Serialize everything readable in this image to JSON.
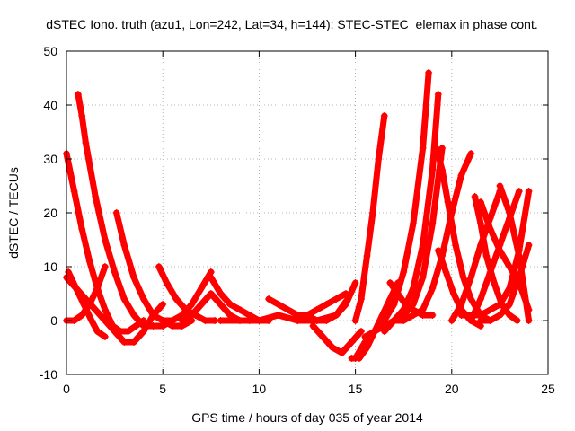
{
  "chart_data": {
    "type": "scatter",
    "title": "dSTEC Iono. truth (azu1, Lon=242, Lat=34, h=144): STEC-STEC_elemax in phase cont.",
    "xlabel": "GPS time / hours of day 035 of year 2014",
    "ylabel": "dSTEC  / TECUs",
    "xlim": [
      0,
      25
    ],
    "ylim": [
      -10,
      50
    ],
    "xticks": [
      0,
      5,
      10,
      15,
      20,
      25
    ],
    "yticks": [
      -10,
      0,
      10,
      20,
      30,
      40,
      50
    ],
    "xtick_labels": [
      "0",
      "5",
      "10",
      "15",
      "20",
      "25"
    ],
    "ytick_labels": [
      "-10",
      "0",
      "10",
      "20",
      "30",
      "40",
      "50"
    ],
    "grid": true,
    "marker": "+",
    "color": "#ff0000",
    "series": [
      {
        "x": [
          0.0,
          0.4,
          0.8,
          1.2,
          1.6,
          2.0,
          2.4,
          2.8,
          3.2,
          3.6,
          4.0
        ],
        "y": [
          31,
          24,
          17,
          11,
          6,
          2,
          -1,
          -2,
          -2,
          -1,
          0
        ]
      },
      {
        "x": [
          0.6,
          0.8,
          1.0,
          1.5,
          2.0,
          2.5,
          3.0,
          3.5,
          4.0,
          4.5,
          5.0,
          5.5
        ],
        "y": [
          42,
          38,
          33,
          23,
          15,
          9,
          4,
          1,
          -1,
          -1,
          -1,
          0
        ]
      },
      {
        "x": [
          2.6,
          3.0,
          3.5,
          4.0,
          4.5,
          5.0,
          5.5,
          6.0,
          6.5
        ],
        "y": [
          20,
          14,
          8,
          4,
          1,
          0,
          -1,
          -1,
          0
        ]
      },
      {
        "x": [
          0.0,
          0.5,
          1.0,
          1.5,
          2.0,
          2.5,
          3.0,
          3.5,
          4.0,
          4.5,
          5.0
        ],
        "y": [
          8,
          6,
          4,
          2,
          0,
          -2,
          -4,
          -4,
          -2,
          1,
          3
        ]
      },
      {
        "x": [
          0.0,
          0.4,
          0.8,
          1.2,
          1.6,
          2.0
        ],
        "y": [
          0,
          0,
          1,
          3,
          6,
          10
        ]
      },
      {
        "x": [
          0.1,
          0.5,
          0.9,
          1.3,
          1.6,
          2.0
        ],
        "y": [
          9,
          6,
          3,
          0,
          -2,
          -3
        ]
      },
      {
        "x": [
          4.8,
          5.2,
          5.7,
          6.2,
          6.7,
          7.2,
          7.7
        ],
        "y": [
          10,
          7,
          4,
          2,
          1,
          0,
          0
        ]
      },
      {
        "x": [
          5.0,
          5.5,
          6.0,
          6.5,
          7.0,
          7.5
        ],
        "y": [
          0,
          0,
          1,
          3,
          6,
          9
        ]
      },
      {
        "x": [
          6.0,
          6.5,
          7.0,
          7.5,
          8.0,
          8.5,
          9.0,
          9.5,
          10.0
        ],
        "y": [
          0,
          1,
          3,
          5,
          3,
          1,
          0,
          0,
          0
        ]
      },
      {
        "x": [
          7.5,
          8.0,
          8.5,
          9.0,
          9.5,
          10.0,
          10.5
        ],
        "y": [
          8,
          5,
          3,
          2,
          1,
          0,
          0
        ]
      },
      {
        "x": [
          8.0,
          9.0,
          10.0,
          11.0,
          12.0,
          13.0,
          14.0,
          14.6
        ],
        "y": [
          0,
          0,
          0,
          1,
          0,
          0,
          1,
          4
        ]
      },
      {
        "x": [
          10.5,
          11.0,
          11.5,
          12.0,
          12.5,
          13.0
        ],
        "y": [
          4,
          3,
          2,
          1,
          1,
          0
        ]
      },
      {
        "x": [
          12.0,
          12.5,
          13.0,
          13.5,
          14.0,
          14.5
        ],
        "y": [
          0,
          1,
          2,
          3,
          4,
          5
        ]
      },
      {
        "x": [
          13.0,
          13.5,
          14.0,
          14.5,
          15.0
        ],
        "y": [
          0,
          0,
          1,
          3,
          7
        ]
      },
      {
        "x": [
          12.8,
          13.3,
          13.8,
          14.3,
          14.8,
          15.3
        ],
        "y": [
          -1,
          -3,
          -5,
          -6,
          -4,
          -2
        ]
      },
      {
        "x": [
          14.8,
          15.0,
          15.5,
          16.0,
          16.5,
          17.0,
          17.5,
          18.0
        ],
        "y": [
          -7,
          -7,
          -4,
          -2,
          -1,
          0,
          0,
          1
        ]
      },
      {
        "x": [
          15.0,
          15.3,
          15.6,
          15.9,
          16.2,
          16.5
        ],
        "y": [
          0,
          4,
          12,
          20,
          30,
          38
        ]
      },
      {
        "x": [
          15.2,
          15.6,
          16.0,
          16.4,
          16.8,
          17.2
        ],
        "y": [
          -7,
          -5,
          -2,
          1,
          4,
          7
        ]
      },
      {
        "x": [
          15.5,
          16.0,
          16.5,
          17.0,
          17.5,
          18.0,
          18.5,
          18.8
        ],
        "y": [
          -3,
          -2,
          0,
          3,
          9,
          18,
          32,
          46
        ]
      },
      {
        "x": [
          16.5,
          17.0,
          17.5,
          18.0,
          18.5,
          19.0,
          19.3
        ],
        "y": [
          -2,
          0,
          2,
          6,
          14,
          28,
          42
        ]
      },
      {
        "x": [
          17.0,
          17.5,
          18.0,
          18.5,
          19.0,
          19.5
        ],
        "y": [
          0,
          1,
          3,
          8,
          18,
          32
        ]
      },
      {
        "x": [
          16.8,
          17.2,
          17.6,
          18.0,
          18.5,
          19.0
        ],
        "y": [
          7,
          5,
          3,
          2,
          1,
          1
        ]
      },
      {
        "x": [
          18.0,
          18.5,
          19.0,
          19.5,
          20.0,
          20.5,
          21.0
        ],
        "y": [
          1,
          2,
          6,
          12,
          20,
          27,
          31
        ]
      },
      {
        "x": [
          19.2,
          19.5,
          19.8,
          20.2,
          20.6,
          21.0,
          21.5,
          22.0
        ],
        "y": [
          32,
          28,
          22,
          14,
          8,
          4,
          1,
          0
        ]
      },
      {
        "x": [
          19.3,
          19.7,
          20.1,
          20.5,
          21.0,
          21.5
        ],
        "y": [
          13,
          9,
          5,
          2,
          0,
          -1
        ]
      },
      {
        "x": [
          20.0,
          20.5,
          21.0,
          21.5,
          22.0,
          22.5
        ],
        "y": [
          0,
          3,
          8,
          14,
          19,
          24
        ]
      },
      {
        "x": [
          21.2,
          21.5,
          21.8,
          22.2,
          22.6,
          23.0,
          23.4
        ],
        "y": [
          23,
          18,
          12,
          7,
          3,
          1,
          0
        ]
      },
      {
        "x": [
          21.5,
          22.0,
          22.5,
          23.0,
          23.5,
          24.0
        ],
        "y": [
          22,
          17,
          13,
          10,
          7,
          2
        ]
      },
      {
        "x": [
          21.0,
          21.5,
          22.0,
          22.5,
          23.0,
          23.5
        ],
        "y": [
          0,
          4,
          9,
          14,
          19,
          24
        ]
      },
      {
        "x": [
          22.5,
          23.0,
          23.5,
          24.0
        ],
        "y": [
          25,
          20,
          12,
          0
        ]
      },
      {
        "x": [
          21.5,
          22.0,
          22.5,
          23.0,
          23.5,
          24.0
        ],
        "y": [
          0,
          0,
          1,
          3,
          8,
          14
        ]
      },
      {
        "x": [
          20.5,
          21.0,
          21.5,
          22.0,
          22.5,
          23.0,
          23.5,
          24.0
        ],
        "y": [
          1,
          1,
          1,
          2,
          3,
          6,
          13,
          24
        ]
      }
    ]
  }
}
